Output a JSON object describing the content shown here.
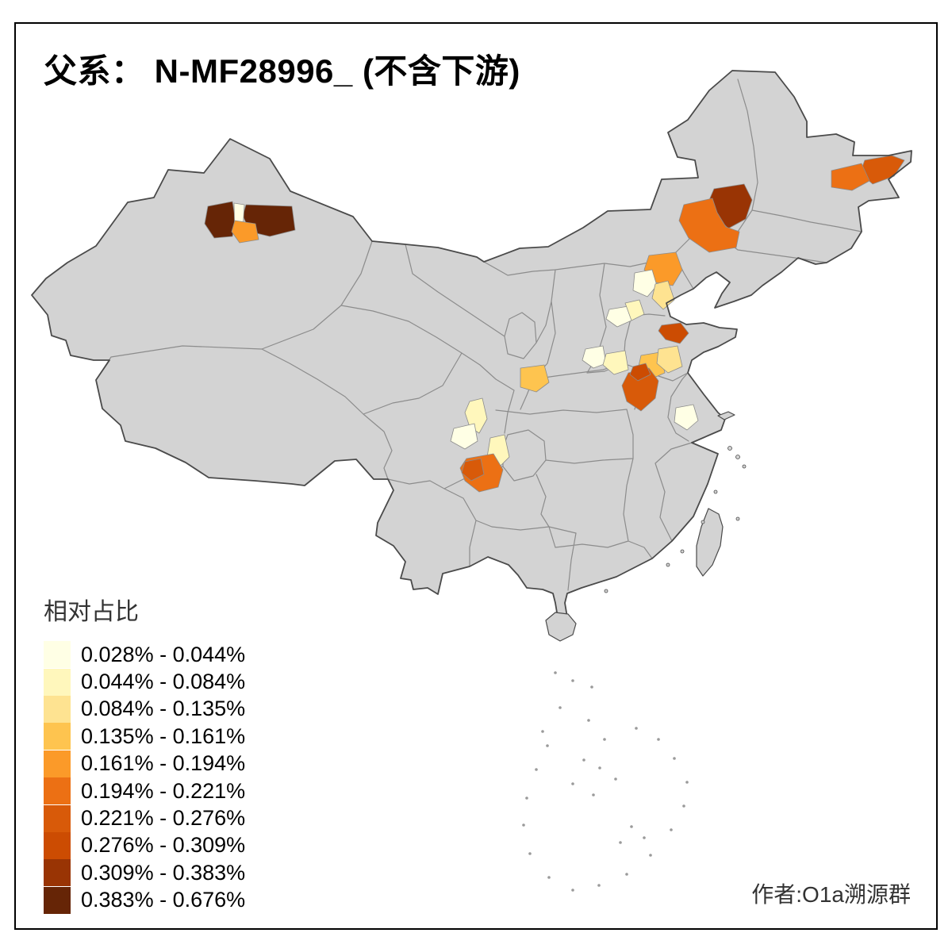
{
  "title": "父系： N-MF28996_ (不含下游)",
  "legend": {
    "title": "相对占比",
    "items": [
      {
        "label": "0.028% - 0.044%",
        "color": "#FFFFE5"
      },
      {
        "label": "0.044% - 0.084%",
        "color": "#FFF7BC"
      },
      {
        "label": "0.084% - 0.135%",
        "color": "#FEE391"
      },
      {
        "label": "0.135% - 0.161%",
        "color": "#FEC44F"
      },
      {
        "label": "0.161% - 0.194%",
        "color": "#FB9A29"
      },
      {
        "label": "0.194% - 0.221%",
        "color": "#EC7014"
      },
      {
        "label": "0.221% - 0.276%",
        "color": "#D85A09"
      },
      {
        "label": "0.276% - 0.309%",
        "color": "#CC4C02"
      },
      {
        "label": "0.309% - 0.383%",
        "color": "#993404"
      },
      {
        "label": "0.383% - 0.676%",
        "color": "#662506"
      }
    ]
  },
  "credit": "作者:O1a溯源群",
  "map": {
    "base_fill": "#d3d3d3",
    "border_color": "#4a4a4a",
    "province_line_color": "#8c8c8c",
    "sea_mark_color": "#9a9a9a",
    "regions": [
      {
        "id": "r1",
        "level": 10
      },
      {
        "id": "r2",
        "level": 10
      },
      {
        "id": "r3",
        "level": 1
      },
      {
        "id": "r4",
        "level": 5
      },
      {
        "id": "r5",
        "level": 9
      },
      {
        "id": "r6",
        "level": 6
      },
      {
        "id": "r7",
        "level": 7
      },
      {
        "id": "r8",
        "level": 6
      },
      {
        "id": "r9",
        "level": 5
      },
      {
        "id": "r10",
        "level": 1
      },
      {
        "id": "r11",
        "level": 3
      },
      {
        "id": "r12",
        "level": 1
      },
      {
        "id": "r13",
        "level": 2
      },
      {
        "id": "r14",
        "level": 1
      },
      {
        "id": "r15",
        "level": 2
      },
      {
        "id": "r16",
        "level": 4
      },
      {
        "id": "r17",
        "level": 3
      },
      {
        "id": "r18",
        "level": 7
      },
      {
        "id": "r19",
        "level": 8
      },
      {
        "id": "r20",
        "level": 8
      },
      {
        "id": "r21",
        "level": 4
      },
      {
        "id": "r22",
        "level": 1
      },
      {
        "id": "r23",
        "level": 2
      },
      {
        "id": "r24",
        "level": 1
      },
      {
        "id": "r25",
        "level": 2
      },
      {
        "id": "r26",
        "level": 6
      },
      {
        "id": "r27",
        "level": 7
      }
    ]
  }
}
